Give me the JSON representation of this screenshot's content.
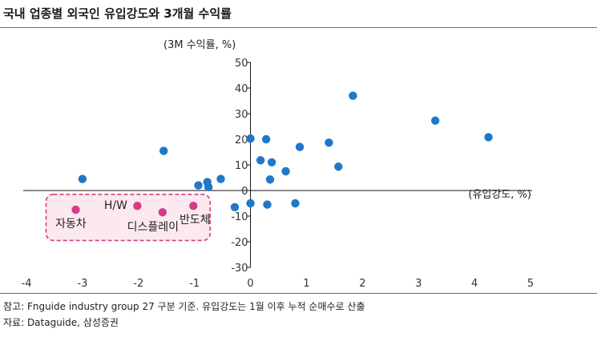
{
  "title": "국내 업종별 외국인 유입강도와 3개월 수익률",
  "footnotes": {
    "note": "참고: Fnguide industry group 27 구분 기준. 유입강도는 1월 이후 누적 순매수로 산출",
    "source": "자료: Dataguide, 삼성증권"
  },
  "chart_data": {
    "type": "scatter",
    "title": "국내 업종별 외국인 유입강도와 3개월 수익률",
    "xlabel": "(유입강도, %)",
    "ylabel": "(3M 수익률, %)",
    "xlim": [
      -4,
      5
    ],
    "ylim": [
      -30,
      50
    ],
    "xticks": [
      -4,
      -3,
      -2,
      -1,
      0,
      1,
      2,
      3,
      4,
      5
    ],
    "yticks": [
      -30,
      -20,
      -10,
      0,
      10,
      20,
      30,
      40,
      50
    ],
    "grid": false,
    "colors": {
      "points": "#1f78c8",
      "highlight": "#d63c86",
      "box_border": "#d63c86",
      "box_fill": "#fbe9ef"
    },
    "series": [
      {
        "points": [
          {
            "x": -3.0,
            "y": 4.5
          },
          {
            "x": -1.55,
            "y": 15.5
          },
          {
            "x": -0.93,
            "y": 2.0
          },
          {
            "x": -0.77,
            "y": 3.3
          },
          {
            "x": -0.75,
            "y": 1.3
          },
          {
            "x": -0.53,
            "y": 4.5
          },
          {
            "x": -0.28,
            "y": -6.5
          },
          {
            "x": 0.0,
            "y": 20.3
          },
          {
            "x": 0.28,
            "y": 20.0
          },
          {
            "x": 0.18,
            "y": 11.8
          },
          {
            "x": 0.38,
            "y": 11.0
          },
          {
            "x": 0.35,
            "y": 4.3
          },
          {
            "x": 0.63,
            "y": 7.5
          },
          {
            "x": 0.88,
            "y": 17.0
          },
          {
            "x": 1.4,
            "y": 18.7
          },
          {
            "x": 1.57,
            "y": 9.3
          },
          {
            "x": 1.83,
            "y": 37.0
          },
          {
            "x": 3.3,
            "y": 27.3
          },
          {
            "x": 4.25,
            "y": 20.8
          },
          {
            "x": 0.0,
            "y": -5.0
          },
          {
            "x": 0.3,
            "y": -5.5
          },
          {
            "x": 0.8,
            "y": -5.0
          }
        ]
      },
      {
        "points": [
          {
            "x": -3.12,
            "y": -7.5,
            "label": "자동차"
          },
          {
            "x": -2.02,
            "y": -6.0,
            "label": "H/W"
          },
          {
            "x": -1.57,
            "y": -8.5,
            "label": "디스플레이"
          },
          {
            "x": -1.02,
            "y": -6.0,
            "label": "반도체"
          }
        ]
      }
    ]
  }
}
